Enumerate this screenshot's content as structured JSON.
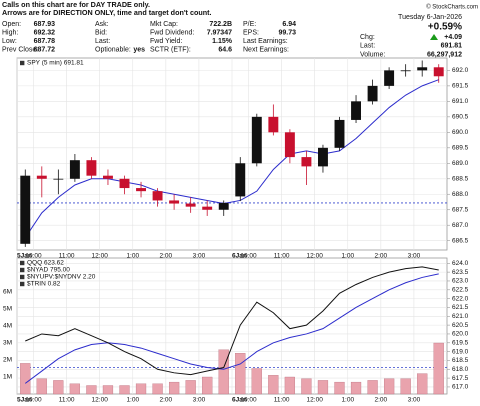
{
  "header": {
    "notice": [
      "Calls on this chart are for DAY TRADE only.",
      "Arrows are for DIRECTION ONLY, time and target don't count."
    ],
    "copyright": "© StockCharts.com",
    "columns": [
      [
        {
          "label": "Open:",
          "value": "687.93"
        },
        {
          "label": "High:",
          "value": "692.32"
        },
        {
          "label": "Low:",
          "value": "687.78"
        },
        {
          "label": "Prev Close:",
          "value": "687.72"
        }
      ],
      [
        {
          "label": "Ask:"
        },
        {
          "label": "Bid:"
        },
        {
          "label": "Last:"
        },
        {
          "label": "Optionable:",
          "value": "yes"
        }
      ],
      [
        {
          "label": "Mkt Cap:",
          "value": "722.2B"
        },
        {
          "label": "Fwd Dividend:",
          "value": "7.97347"
        },
        {
          "label": "Fwd Yield:",
          "value": "1.15%"
        },
        {
          "label": "SCTR (ETF):",
          "value": "64.6"
        }
      ],
      [
        {
          "label": "P/E:",
          "value": "6.94"
        },
        {
          "label": "EPS:",
          "value": "99.73"
        },
        {
          "label": "Last Earnings:"
        },
        {
          "label": "Next Earnings:"
        }
      ]
    ],
    "date": "Tuesday 6-Jan-2026",
    "change_pct": "+0.59%",
    "summary": [
      {
        "label": "Chg:",
        "value": "+4.09"
      },
      {
        "label": "Last:",
        "value": "691.81"
      },
      {
        "label": "Volume:",
        "value": "66,297,912"
      }
    ]
  },
  "chart_data": [
    {
      "type": "candlestick",
      "legend": [
        "SPY (5 min) 691.81"
      ],
      "x": [
        0.25,
        0.75,
        1.25,
        1.75,
        2.25,
        2.75,
        3.25,
        3.75,
        4.25,
        4.75,
        5.25,
        5.75,
        6.25,
        6.75,
        7.25,
        7.75,
        8.25,
        8.75,
        9.25,
        9.75,
        10.25,
        10.75,
        11.25,
        11.75,
        12.25,
        12.75
      ],
      "open": [
        686.4,
        688.6,
        688.5,
        688.5,
        689.1,
        688.6,
        688.5,
        688.2,
        688.1,
        687.8,
        687.7,
        687.6,
        687.5,
        687.93,
        689.0,
        690.5,
        690.0,
        689.2,
        688.9,
        689.5,
        690.4,
        691.0,
        691.5,
        692.0,
        692.0,
        692.1
      ],
      "high": [
        688.8,
        688.9,
        688.8,
        689.3,
        689.2,
        688.8,
        688.6,
        688.4,
        688.2,
        688.0,
        687.9,
        687.8,
        687.8,
        689.2,
        690.6,
        690.9,
        690.1,
        689.4,
        689.6,
        690.5,
        691.2,
        691.7,
        692.1,
        692.2,
        692.32,
        692.2
      ],
      "low": [
        686.3,
        687.9,
        688.0,
        688.4,
        688.5,
        688.3,
        688.0,
        687.9,
        687.6,
        687.5,
        687.4,
        687.3,
        687.3,
        687.78,
        688.9,
        689.9,
        689.0,
        688.3,
        688.7,
        689.4,
        690.3,
        690.9,
        691.4,
        691.8,
        691.8,
        691.6
      ],
      "close": [
        688.6,
        688.5,
        688.5,
        689.1,
        688.6,
        688.5,
        688.2,
        688.1,
        687.8,
        687.7,
        687.6,
        687.5,
        687.72,
        689.0,
        690.5,
        690.0,
        689.2,
        688.9,
        689.5,
        690.4,
        691.0,
        691.5,
        692.0,
        692.0,
        692.1,
        691.81
      ],
      "up_color": "#111111",
      "down_color": "#c8102e",
      "series": [
        {
          "color": "#2c2ccc",
          "values": [
            686.6,
            687.4,
            687.9,
            688.3,
            688.5,
            688.5,
            688.4,
            688.3,
            688.1,
            688.0,
            687.9,
            687.8,
            687.7,
            687.8,
            688.1,
            688.8,
            689.3,
            689.4,
            689.3,
            689.4,
            689.8,
            690.3,
            690.8,
            691.2,
            691.5,
            691.7
          ]
        }
      ],
      "reference_lines": [
        {
          "value": 687.72,
          "color": "#3344cc"
        }
      ],
      "xlim": [
        0,
        13
      ],
      "xticks": [
        {
          "value": 0,
          "label": "5Jan"
        },
        {
          "value": 0.5,
          "label": "10:00"
        },
        {
          "value": 1.5,
          "label": "11:00"
        },
        {
          "value": 2.5,
          "label": "12:00"
        },
        {
          "value": 3.5,
          "label": "1:00"
        },
        {
          "value": 4.5,
          "label": "2:00"
        },
        {
          "value": 5.5,
          "label": "3:00"
        },
        {
          "value": 6.5,
          "label": "6Jan"
        },
        {
          "value": 7,
          "label": "10:00"
        },
        {
          "value": 8,
          "label": "11:00"
        },
        {
          "value": 9,
          "label": "12:00"
        },
        {
          "value": 10,
          "label": "1:00"
        },
        {
          "value": 11,
          "label": "2:00"
        },
        {
          "value": 12,
          "label": "3:00"
        }
      ],
      "ylim": [
        686.2,
        692.4
      ],
      "yticks": [
        {
          "value": 692,
          "label": "692.0"
        },
        691.5,
        {
          "value": 691,
          "label": "691.0"
        },
        690.5,
        {
          "value": 690,
          "label": "690.0"
        },
        689.5,
        {
          "value": 689,
          "label": "689.0"
        },
        688.5,
        {
          "value": 688,
          "label": "688.0"
        },
        687.5,
        {
          "value": 687,
          "label": "687.0"
        },
        686.5
      ],
      "grid": true
    },
    {
      "type": "line",
      "legend": [
        "QQQ 623.62",
        "$NYAD 795.00",
        "$NYUPV:$NYDNV 2.20",
        "$TRIN 0.82"
      ],
      "x": [
        0.25,
        0.75,
        1.25,
        1.75,
        2.25,
        2.75,
        3.25,
        3.75,
        4.25,
        4.75,
        5.25,
        5.75,
        6.25,
        6.75,
        7.25,
        7.75,
        8.25,
        8.75,
        9.25,
        9.75,
        10.25,
        10.75,
        11.25,
        11.75,
        12.25,
        12.75
      ],
      "series": [
        {
          "color": "#e9a3ad",
          "axis": "y2",
          "kind": "bar",
          "values": [
            1800000,
            900000,
            800000,
            600000,
            500000,
            500000,
            500000,
            600000,
            600000,
            700000,
            800000,
            1000000,
            2600000,
            2400000,
            1500000,
            1100000,
            1000000,
            900000,
            800000,
            700000,
            700000,
            800000,
            900000,
            900000,
            1200000,
            3000000
          ]
        },
        {
          "color": "#2c2ccc",
          "values": [
            617.2,
            617.9,
            618.6,
            619.1,
            619.4,
            619.5,
            619.4,
            619.2,
            618.9,
            618.6,
            618.3,
            618.1,
            618.0,
            618.3,
            619.0,
            619.5,
            619.8,
            620.0,
            620.3,
            620.9,
            621.5,
            622.0,
            622.5,
            622.9,
            623.2,
            623.4
          ]
        },
        {
          "color": "#111111",
          "values": [
            619.6,
            620.0,
            619.9,
            620.3,
            619.9,
            619.5,
            619.0,
            618.6,
            618.0,
            617.8,
            617.7,
            617.9,
            618.1,
            620.5,
            621.8,
            621.2,
            620.3,
            620.5,
            621.3,
            622.3,
            622.8,
            623.2,
            623.5,
            623.7,
            623.8,
            623.62
          ]
        }
      ],
      "reference_lines": [
        {
          "value": 618.1,
          "color": "#3344cc"
        }
      ],
      "xlim": [
        0,
        13
      ],
      "xticks": [
        {
          "value": 0,
          "label": "5Jan"
        },
        {
          "value": 0.5,
          "label": "10:00"
        },
        {
          "value": 1.5,
          "label": "11:00"
        },
        {
          "value": 2.5,
          "label": "12:00"
        },
        {
          "value": 3.5,
          "label": "1:00"
        },
        {
          "value": 4.5,
          "label": "2:00"
        },
        {
          "value": 5.5,
          "label": "3:00"
        },
        {
          "value": 6.5,
          "label": "6Jan"
        },
        {
          "value": 7,
          "label": "10:00"
        },
        {
          "value": 8,
          "label": "11:00"
        },
        {
          "value": 9,
          "label": "12:00"
        },
        {
          "value": 10,
          "label": "1:00"
        },
        {
          "value": 11,
          "label": "2:00"
        },
        {
          "value": 12,
          "label": "3:00"
        }
      ],
      "ylim": [
        616.6,
        624.3
      ],
      "yticks": [
        {
          "value": 624,
          "label": "624.0"
        },
        623.5,
        {
          "value": 623,
          "label": "623.0"
        },
        622.5,
        {
          "value": 622,
          "label": "622.0"
        },
        621.5,
        {
          "value": 621,
          "label": "621.0"
        },
        620.5,
        {
          "value": 620,
          "label": "620.0"
        },
        619.5,
        {
          "value": 619,
          "label": "619.0"
        },
        618.5,
        {
          "value": 618,
          "label": "618.0"
        },
        617.5,
        {
          "value": 617,
          "label": "617.0"
        }
      ],
      "y2lim": [
        0,
        8000000
      ],
      "y2ticks": [
        {
          "value": 1000000,
          "label": "1M"
        },
        {
          "value": 2000000,
          "label": "2M"
        },
        {
          "value": 3000000,
          "label": "3M"
        },
        {
          "value": 4000000,
          "label": "4M"
        },
        {
          "value": 5000000,
          "label": "5M"
        },
        {
          "value": 6000000,
          "label": "6M"
        }
      ],
      "grid": true
    }
  ]
}
